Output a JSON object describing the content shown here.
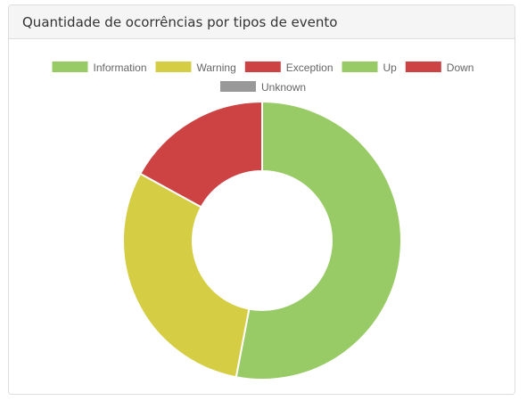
{
  "panel": {
    "title": "Quantidade de ocorrências por tipos de evento"
  },
  "chart_data": {
    "type": "doughnut",
    "title": "",
    "legend_position": "top",
    "categories": [
      "Information",
      "Warning",
      "Exception",
      "Up",
      "Down",
      "Unknown"
    ],
    "values": [
      53,
      30,
      17,
      0,
      0,
      0
    ],
    "colors": [
      "#98cb65",
      "#d5cd43",
      "#cd4242",
      "#98cb65",
      "#cd4242",
      "#999999"
    ],
    "unit": "percent of total (estimated)"
  }
}
